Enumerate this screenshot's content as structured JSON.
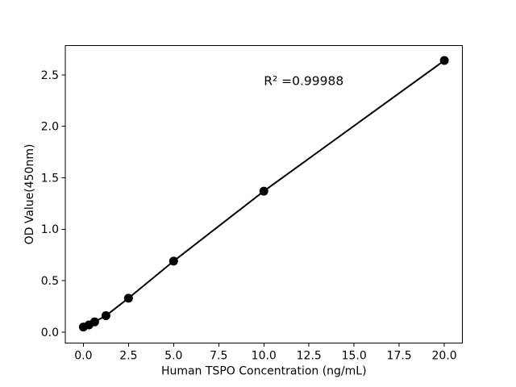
{
  "chart_data": {
    "type": "line",
    "x": [
      0,
      0.312,
      0.625,
      1.25,
      2.5,
      5,
      10,
      20
    ],
    "y": [
      0.05,
      0.07,
      0.1,
      0.16,
      0.33,
      0.69,
      1.37,
      2.64
    ],
    "title": "",
    "xlabel": "Human TSPO Concentration (ng/mL)",
    "ylabel": "OD Value(450nm)",
    "xlim": [
      -1,
      21
    ],
    "ylim": [
      -0.106,
      2.785
    ],
    "xticks": [
      0,
      2.5,
      5,
      7.5,
      10,
      12.5,
      15,
      17.5,
      20
    ],
    "xtick_labels": [
      "0.0",
      "2.5",
      "5.0",
      "7.5",
      "10.0",
      "12.5",
      "15.0",
      "17.5",
      "20.0"
    ],
    "yticks": [
      0,
      0.5,
      1,
      1.5,
      2,
      2.5
    ],
    "ytick_labels": [
      "0.0",
      "0.5",
      "1.0",
      "1.5",
      "2.0",
      "2.5"
    ],
    "grid": false,
    "legend": null,
    "marker": "circle",
    "marker_radius": 5.5,
    "line_width": 2,
    "colors": {
      "line": "#000000",
      "marker": "#000000",
      "text": "#000000",
      "spine": "#000000",
      "background": "#ffffff"
    },
    "annotation": {
      "text": "R² =0.99988",
      "x": 10,
      "y": 2.4
    }
  }
}
